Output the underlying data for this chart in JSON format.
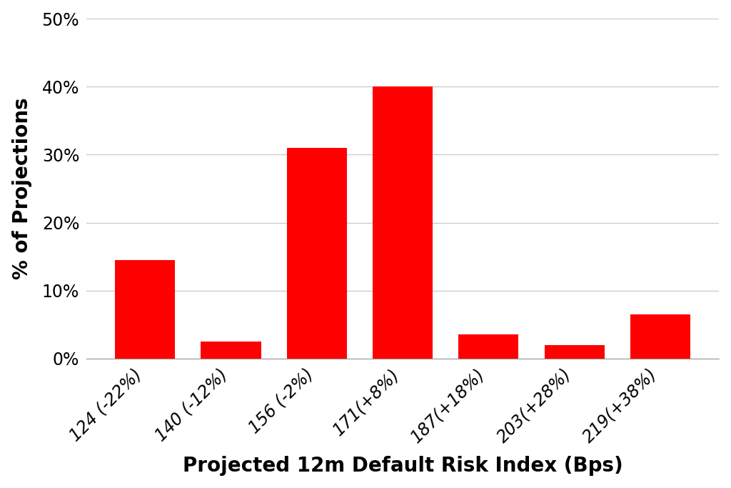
{
  "categories": [
    "124 (-22%)",
    "140 (-12%)",
    "156 (-2%)",
    "171(+8%)",
    "187(+18%)",
    "203(+28%)",
    "219(+38%)"
  ],
  "values": [
    14.5,
    2.5,
    31.0,
    40.0,
    3.5,
    2.0,
    6.5
  ],
  "bar_color": "#ff0000",
  "xlabel": "Projected 12m Default Risk Index (Bps)",
  "ylabel": "% of Projections",
  "ylim": [
    0,
    50
  ],
  "yticks": [
    0,
    10,
    20,
    30,
    40,
    50
  ],
  "ytick_labels": [
    "0%",
    "10%",
    "20%",
    "30%",
    "40%",
    "50%"
  ],
  "background_color": "#ffffff",
  "grid_color": "#cccccc",
  "xlabel_fontsize": 20,
  "ylabel_fontsize": 20,
  "tick_fontsize": 17,
  "bar_width": 0.7
}
